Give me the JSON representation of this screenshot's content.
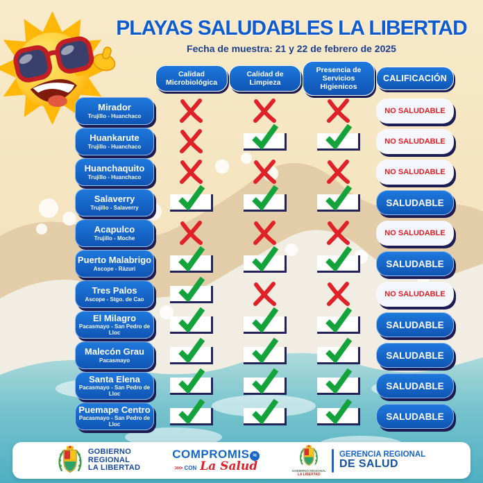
{
  "poster": {
    "title": "PLAYAS SALUDABLES LA LIBERTAD",
    "subtitle": "Fecha de muestra: 21 y 22 de febrero de 2025"
  },
  "table": {
    "columns": [
      "Calidad Microbiológica",
      "Calidad de Limpieza",
      "Presencia de Servicios Higienicos",
      "CALIFICACIÓN"
    ],
    "rows": [
      {
        "name": "Mirador",
        "location": "Trujillo - Huanchaco",
        "marks": [
          "x",
          "x",
          "x"
        ],
        "rating": "NO SALUDABLE"
      },
      {
        "name": "Huankarute",
        "location": "Trujillo - Huanchaco",
        "marks": [
          "x",
          "check",
          "check"
        ],
        "rating": "NO SALUDABLE"
      },
      {
        "name": "Huanchaquito",
        "location": "Trujillo - Huanchaco",
        "marks": [
          "x",
          "x",
          "x"
        ],
        "rating": "NO SALUDABLE"
      },
      {
        "name": "Salaverry",
        "location": "Trujillo - Salaverry",
        "marks": [
          "check",
          "check",
          "check"
        ],
        "rating": "SALUDABLE"
      },
      {
        "name": "Acapulco",
        "location": "Trujillo - Moche",
        "marks": [
          "x",
          "x",
          "x"
        ],
        "rating": "NO SALUDABLE"
      },
      {
        "name": "Puerto Malabrigo",
        "location": "Ascope - Rázuri",
        "marks": [
          "check",
          "check",
          "check"
        ],
        "rating": "SALUDABLE"
      },
      {
        "name": "Tres Palos",
        "location": "Ascope - Stgo. de Cao",
        "marks": [
          "check",
          "x",
          "x"
        ],
        "rating": "NO SALUDABLE"
      },
      {
        "name": "El Milagro",
        "location": "Pacasmayo - San Pedro de Lloc",
        "marks": [
          "check",
          "check",
          "check"
        ],
        "rating": "SALUDABLE"
      },
      {
        "name": "Malecón Grau",
        "location": "Pacasmayo",
        "marks": [
          "check",
          "check",
          "check"
        ],
        "rating": "SALUDABLE"
      },
      {
        "name": "Santa Elena",
        "location": "Pacasmayo - San Pedro de Lloc",
        "marks": [
          "check",
          "check",
          "check"
        ],
        "rating": "SALUDABLE"
      },
      {
        "name": "Puemape Centro",
        "location": "Pacasmayo - San Pedro de Lloc",
        "marks": [
          "check",
          "check",
          "check"
        ],
        "rating": "SALUDABLE"
      }
    ]
  },
  "footer": {
    "gobierno": {
      "line1": "GOBIERNO",
      "line2": "REGIONAL",
      "line3": "LA LIBERTAD"
    },
    "compromiso": {
      "title": "COMPROMISO",
      "arrows": ">>>",
      "con": "CON",
      "script": "La Salud"
    },
    "gerencia": {
      "line1": "GERENCIA REGIONAL",
      "line2": "DE SALUD",
      "seal_caption_line1": "GOBIERNO REGIONAL",
      "seal_caption_line2": "LA LIBERTAD"
    }
  },
  "colors": {
    "pill_blue": "#1565C6",
    "pill_blue_light": "#1E79DC",
    "pill_blue_dark": "#0F55B5",
    "shadow_navy": "#1B1C55",
    "check_green": "#12A33B",
    "cross_red": "#E02128",
    "title_blue": "#0F5ACD",
    "subtitle_navy": "#1A3E8C",
    "rating_red": "#E31E25",
    "sand": "#F6E6C2",
    "water": "#5FB7C7",
    "footer_blue": "#1666C8",
    "footer_dark_blue": "#11509F"
  },
  "icons": [
    "sun-mascot-icon",
    "check-icon",
    "x-icon",
    "coat-of-arms-icon",
    "globe-icon"
  ]
}
